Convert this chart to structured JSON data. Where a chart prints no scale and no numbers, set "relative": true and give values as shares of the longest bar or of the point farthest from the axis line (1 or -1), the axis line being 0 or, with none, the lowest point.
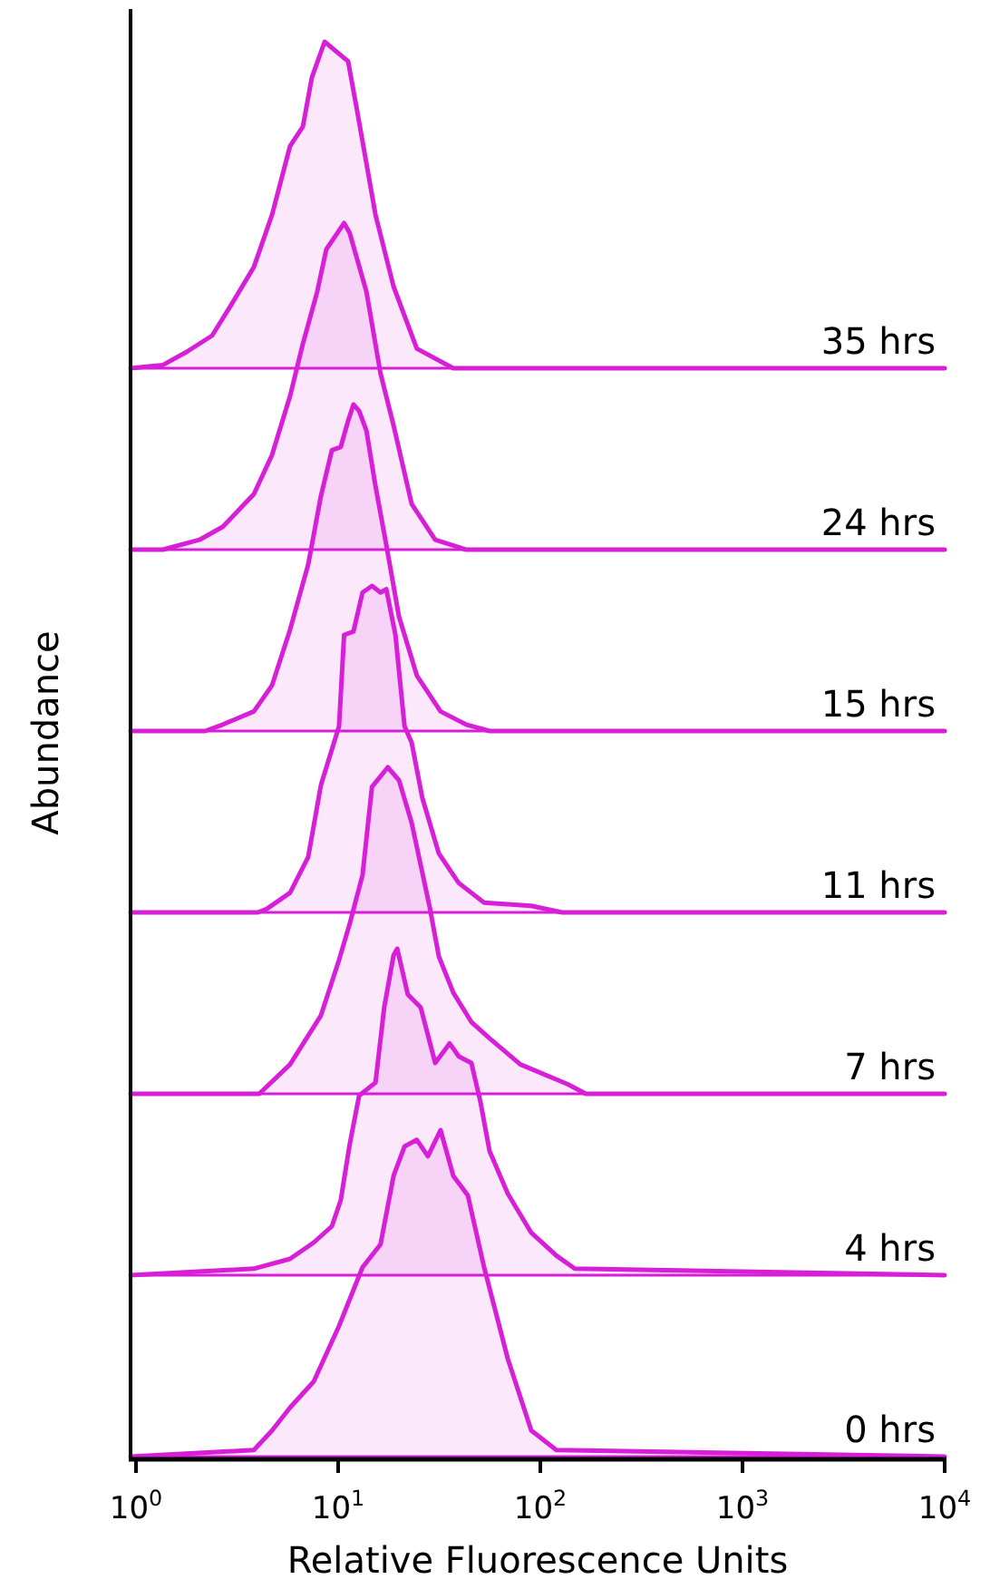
{
  "chart_data": [
    {
      "type": "area",
      "relative": true,
      "log": "x",
      "xlim": [
        0.94,
        10000
      ],
      "tick_labels": false,
      "series": [
        {
          "name": "35 hrs",
          "color": "#d61fd6",
          "x": [
            0.94,
            1.36,
            1.78,
            2.38,
            2.93,
            3.83,
            4.71,
            5.78,
            6.69,
            7.41,
            8.57,
            11.2,
            12.4,
            15.3,
            18.8,
            24.5,
            37.1,
            10000
          ],
          "values": [
            0,
            0.01,
            0.05,
            0.1,
            0.19,
            0.31,
            0.47,
            0.68,
            0.74,
            0.89,
            1,
            0.94,
            0.79,
            0.47,
            0.25,
            0.06,
            0,
            0
          ]
        }
      ]
    },
    {
      "type": "area",
      "relative": true,
      "log": "x",
      "xlim": [
        0.94,
        10000
      ],
      "tick_labels": false,
      "series": [
        {
          "name": "24 hrs",
          "color": "#d61fd6",
          "x": [
            0.94,
            1.36,
            2.06,
            2.69,
            3.83,
            4.71,
            5.78,
            6.69,
            7.88,
            8.74,
            10.7,
            11.4,
            13.8,
            16.2,
            18.8,
            23.1,
            30.2,
            42.9,
            10000
          ],
          "values": [
            0,
            0,
            0.03,
            0.07,
            0.17,
            0.29,
            0.47,
            0.63,
            0.79,
            0.92,
            1,
            0.97,
            0.79,
            0.54,
            0.38,
            0.14,
            0.03,
            0,
            0
          ]
        }
      ]
    },
    {
      "type": "area",
      "relative": true,
      "log": "x",
      "xlim": [
        0.94,
        10000
      ],
      "tick_labels": false,
      "series": [
        {
          "name": "15 hrs",
          "color": "#d61fd6",
          "x": [
            0.94,
            2.2,
            2.69,
            3.83,
            4.71,
            5.78,
            7.11,
            8.22,
            9.31,
            10.3,
            11.2,
            11.9,
            12.7,
            13.8,
            15.3,
            17.3,
            20.0,
            24.5,
            32.1,
            42.9,
            56.1,
            10000
          ],
          "values": [
            0,
            0,
            0.02,
            0.06,
            0.14,
            0.31,
            0.51,
            0.72,
            0.86,
            0.87,
            0.95,
            1,
            0.98,
            0.92,
            0.75,
            0.57,
            0.35,
            0.17,
            0.06,
            0.02,
            0,
            0
          ]
        }
      ]
    },
    {
      "type": "area",
      "relative": true,
      "log": "x",
      "xlim": [
        0.94,
        10000
      ],
      "ylabel": "Abundance",
      "tick_labels": false,
      "series": [
        {
          "name": "11 hrs",
          "color": "#d61fd6",
          "x": [
            0.94,
            4.0,
            4.42,
            5.78,
            7.11,
            8.22,
            10.1,
            10.7,
            11.9,
            13.2,
            14.7,
            16.2,
            17.3,
            19.2,
            21.3,
            23.1,
            26.1,
            31.5,
            39.5,
            52.7,
            90.2,
            128,
            10000
          ],
          "values": [
            0,
            0,
            0.01,
            0.06,
            0.17,
            0.39,
            0.57,
            0.85,
            0.86,
            0.98,
            1,
            0.98,
            0.99,
            0.85,
            0.57,
            0.52,
            0.35,
            0.18,
            0.09,
            0.03,
            0.02,
            0,
            0
          ]
        }
      ]
    },
    {
      "type": "area",
      "relative": true,
      "log": "x",
      "xlim": [
        0.94,
        10000
      ],
      "tick_labels": false,
      "series": [
        {
          "name": "7 hrs",
          "color": "#d61fd6",
          "x": [
            0.94,
            4.07,
            5.78,
            8.22,
            10.1,
            11.4,
            13.2,
            14.7,
            17.6,
            20.0,
            23.1,
            28.4,
            31.5,
            37.1,
            45.6,
            56.1,
            79.7,
            136,
            168,
            10000
          ],
          "values": [
            0,
            0,
            0.09,
            0.24,
            0.41,
            0.52,
            0.67,
            0.94,
            1,
            0.96,
            0.83,
            0.57,
            0.42,
            0.31,
            0.22,
            0.17,
            0.09,
            0.03,
            0,
            0
          ]
        }
      ]
    },
    {
      "type": "area",
      "relative": true,
      "log": "x",
      "xlim": [
        0.94,
        10000
      ],
      "tick_labels": false,
      "series": [
        {
          "name": "4 hrs",
          "color": "#d61fd6",
          "x": [
            0.94,
            3.83,
            5.78,
            7.57,
            9.31,
            10.3,
            11.4,
            12.7,
            15.3,
            16.9,
            18.8,
            19.6,
            22.1,
            25.6,
            30.2,
            35.6,
            39.5,
            45.6,
            50.6,
            56.1,
            69.0,
            90.2,
            120,
            148,
            10000
          ],
          "values": [
            0,
            0.02,
            0.05,
            0.1,
            0.15,
            0.23,
            0.4,
            0.55,
            0.59,
            0.82,
            0.98,
            1,
            0.86,
            0.82,
            0.65,
            0.71,
            0.67,
            0.65,
            0.53,
            0.38,
            0.25,
            0.13,
            0.06,
            0.02,
            0
          ]
        }
      ]
    },
    {
      "type": "area",
      "relative": true,
      "log": "x",
      "xlim": [
        0.94,
        10000
      ],
      "xlabel": "Relative Fluorescence Units",
      "tick_labels": "x",
      "xticks": [
        {
          "value": 1,
          "label": "10$^{0}$"
        },
        {
          "value": 10,
          "label": "10$^{1}$"
        },
        {
          "value": 100,
          "label": "10$^{2}$"
        },
        {
          "value": 1000,
          "label": "10$^{3}$"
        },
        {
          "value": 10000,
          "label": "10$^{4}$"
        }
      ],
      "series": [
        {
          "name": "0 hrs",
          "color": "#d61fd6",
          "x": [
            0.94,
            3.83,
            4.71,
            5.78,
            7.57,
            10.1,
            13.2,
            16.2,
            18.8,
            21.3,
            24.5,
            27.8,
            32.1,
            37.1,
            43.8,
            52.7,
            69.0,
            90.2,
            120,
            10000
          ],
          "values": [
            0,
            0.02,
            0.08,
            0.15,
            0.23,
            0.4,
            0.58,
            0.65,
            0.86,
            0.95,
            0.97,
            0.92,
            1,
            0.86,
            0.8,
            0.58,
            0.3,
            0.08,
            0.02,
            0
          ]
        }
      ]
    }
  ]
}
